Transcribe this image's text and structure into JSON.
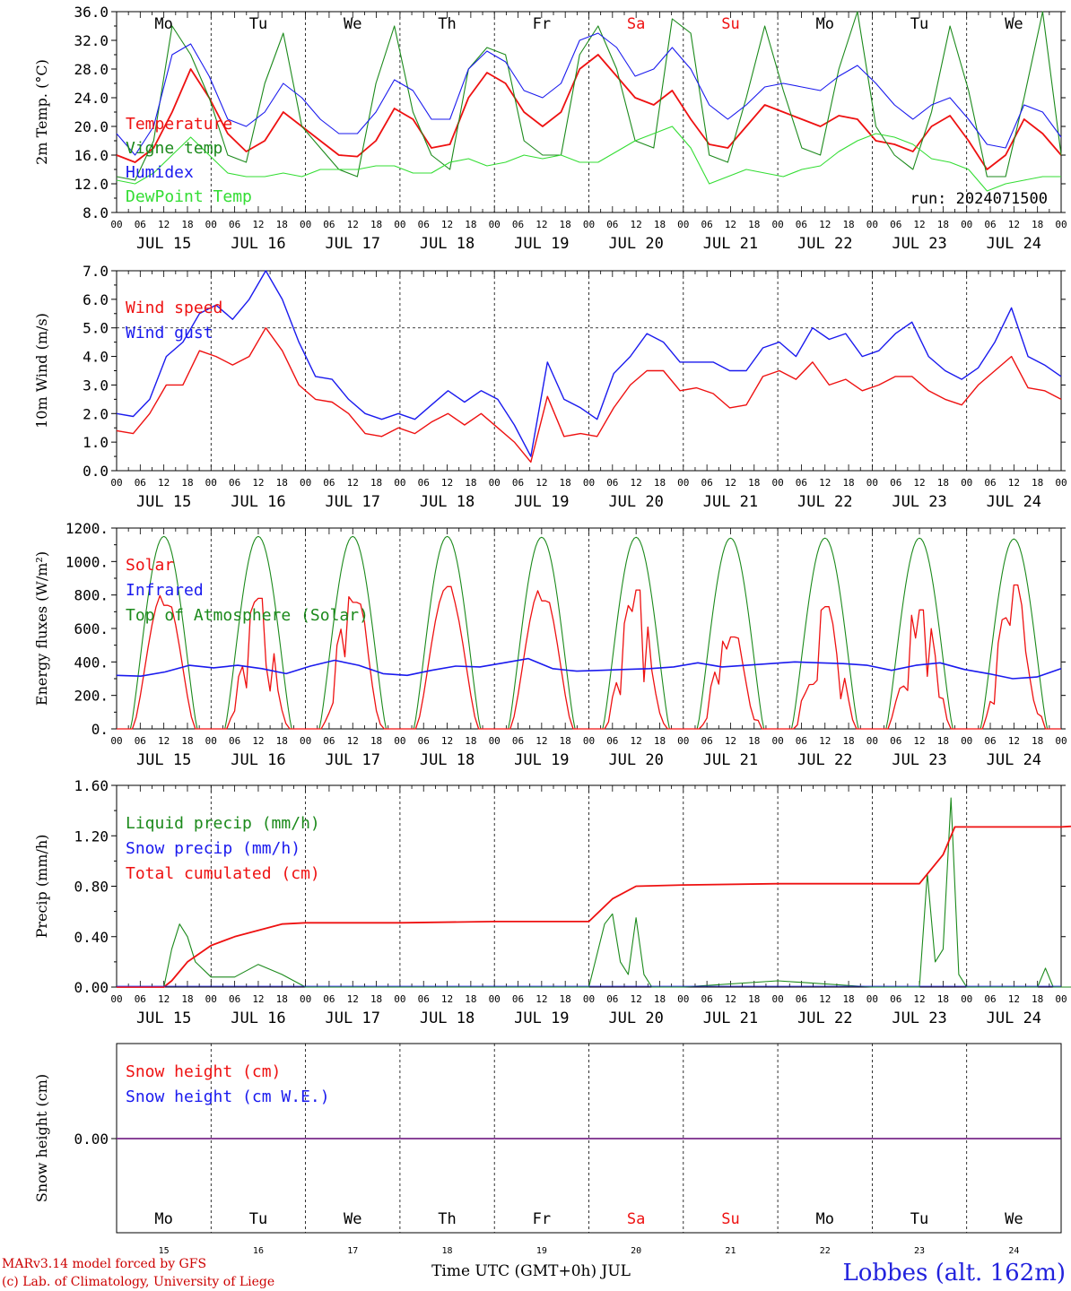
{
  "days": [
    "JUL 15",
    "JUL 16",
    "JUL 17",
    "JUL 18",
    "JUL 19",
    "JUL 20",
    "JUL 21",
    "JUL 22",
    "JUL 23",
    "JUL 24"
  ],
  "day_numbers": [
    "15",
    "16",
    "17",
    "18",
    "19",
    "20",
    "21",
    "22",
    "23",
    "24"
  ],
  "weekdays": [
    "Mo",
    "Tu",
    "We",
    "Th",
    "Fr",
    "Sa",
    "Su",
    "Mo",
    "Tu",
    "We"
  ],
  "weekend_flags": [
    false,
    false,
    false,
    false,
    false,
    true,
    true,
    false,
    false,
    false
  ],
  "hour_ticks": [
    "00",
    "06",
    "12",
    "18"
  ],
  "colors": {
    "red": "#ee1111",
    "green": "#1c8a1c",
    "blue": "#1a1aee",
    "light_green": "#33dd33",
    "purple": "#7a2a8a",
    "weekend": "#ee1111"
  },
  "footer": {
    "credit_line1": "MARv3.14 model forced by GFS",
    "credit_line2": "(c) Lab. of Climatology, University of Liege",
    "x_title": "Time UTC (GMT+0h) JUL",
    "station": "Lobbes (alt. 162m)"
  },
  "chart_data": [
    {
      "type": "line",
      "ylabel": "2m Temp. (°C)",
      "ylim": [
        8,
        36
      ],
      "yticks": [
        "8.0",
        "12.0",
        "16.0",
        "20.0",
        "24.0",
        "28.0",
        "32.0",
        "36.0"
      ],
      "run_label": "run: 2024071500",
      "legend": [
        "Temperature",
        "Vigne temp",
        "Humidex",
        "DewPoint Temp"
      ],
      "series": [
        {
          "name": "Temperature",
          "color": "red",
          "values": [
            16,
            15,
            17,
            22,
            28,
            24,
            19,
            16.5,
            18,
            22,
            20,
            18,
            16,
            15.8,
            18,
            22.5,
            21,
            17,
            17.5,
            24,
            27.5,
            26,
            22,
            20,
            22,
            28,
            30,
            27,
            24,
            23,
            25,
            21,
            17.5,
            17,
            20,
            23,
            22,
            21,
            20,
            21.5,
            21,
            18,
            17.5,
            16.5,
            20,
            21.5,
            18,
            14,
            16,
            21,
            19,
            16
          ]
        },
        {
          "name": "Vigne temp",
          "color": "green",
          "values": [
            13,
            12.5,
            18,
            34,
            30,
            24,
            16,
            15,
            26,
            33,
            20,
            17,
            14,
            13,
            26,
            34,
            22,
            16,
            14,
            28,
            31,
            30,
            18,
            16,
            16,
            30,
            34,
            28,
            18,
            17,
            35,
            33,
            16,
            15,
            24,
            34,
            25,
            17,
            16,
            28,
            36,
            20,
            16,
            14,
            22,
            34,
            25,
            13,
            13,
            24,
            36,
            16
          ]
        },
        {
          "name": "Humidex",
          "color": "blue",
          "values": [
            19,
            16,
            20,
            30,
            31.5,
            27,
            21,
            20,
            22,
            26,
            24,
            21,
            19,
            19,
            22,
            26.5,
            25,
            21,
            21,
            28,
            30.5,
            29,
            25,
            24,
            26,
            32,
            33,
            31,
            27,
            28,
            31,
            28,
            23,
            21,
            23,
            25.5,
            26,
            25.5,
            25,
            27,
            28.5,
            26,
            23,
            21,
            23,
            24,
            21,
            17.5,
            17,
            23,
            22,
            18.5
          ]
        },
        {
          "name": "DewPoint Temp",
          "color": "light_green",
          "values": [
            12.5,
            12,
            13.5,
            16,
            18.5,
            16,
            13.5,
            13,
            13,
            13.5,
            13,
            14,
            14,
            14,
            14.5,
            14.5,
            13.5,
            13.5,
            15,
            15.5,
            14.5,
            15,
            16,
            15.5,
            16,
            15,
            15,
            16.5,
            18,
            19,
            20,
            17,
            12,
            13,
            14,
            13.5,
            13,
            14,
            14.5,
            16.5,
            18,
            19,
            18.5,
            17.5,
            15.5,
            15,
            14,
            11,
            12,
            12.5,
            13,
            13
          ]
        }
      ]
    },
    {
      "type": "line",
      "ylabel": "10m Wind (m/s)",
      "ylim": [
        0,
        7
      ],
      "yticks": [
        "0.0",
        "1.0",
        "2.0",
        "3.0",
        "4.0",
        "5.0",
        "6.0",
        "7.0"
      ],
      "legend": [
        "Wind speed",
        "Wind gust"
      ],
      "series": [
        {
          "name": "Wind speed",
          "color": "red",
          "values": [
            1.4,
            1.3,
            2,
            3,
            3,
            4.2,
            4,
            3.7,
            4,
            5,
            4.2,
            3,
            2.5,
            2.4,
            2,
            1.3,
            1.2,
            1.5,
            1.3,
            1.7,
            2,
            1.6,
            2,
            1.5,
            1,
            0.3,
            2.6,
            1.2,
            1.3,
            1.2,
            2.2,
            3,
            3.5,
            3.5,
            2.8,
            2.9,
            2.7,
            2.2,
            2.3,
            3.3,
            3.5,
            3.2,
            3.8,
            3,
            3.2,
            2.8,
            3,
            3.3,
            3.3,
            2.8,
            2.5,
            2.3,
            3,
            3.5,
            4,
            2.9,
            2.8,
            2.5
          ]
        },
        {
          "name": "Wind gust",
          "color": "blue",
          "values": [
            2,
            1.9,
            2.5,
            4,
            4.5,
            5.5,
            5.8,
            5.3,
            6,
            7,
            6,
            4.5,
            3.3,
            3.2,
            2.5,
            2,
            1.8,
            2,
            1.8,
            2.3,
            2.8,
            2.4,
            2.8,
            2.5,
            1.6,
            0.5,
            3.8,
            2.5,
            2.2,
            1.8,
            3.4,
            4,
            4.8,
            4.5,
            3.8,
            3.8,
            3.8,
            3.5,
            3.5,
            4.3,
            4.5,
            4,
            5,
            4.6,
            4.8,
            4,
            4.2,
            4.8,
            5.2,
            4,
            3.5,
            3.2,
            3.6,
            4.5,
            5.7,
            4,
            3.7,
            3.3
          ]
        }
      ]
    },
    {
      "type": "line",
      "ylabel": "Energy fluxes (W/m²)",
      "ylim": [
        0,
        1200
      ],
      "yticks": [
        "0.",
        "200.",
        "400.",
        "600.",
        "800.",
        "1000.",
        "1200."
      ],
      "legend": [
        "Solar",
        "Infrared",
        "Top of Atmosphere (Solar)"
      ],
      "series": [
        {
          "name": "Solar peak",
          "color": "red",
          "values": [
            820,
            780,
            840,
            850,
            850,
            830,
            610,
            730,
            790,
            860
          ]
        },
        {
          "name": "Infrared",
          "color": "blue",
          "values": [
            320,
            315,
            340,
            380,
            365,
            380,
            360,
            330,
            375,
            410,
            380,
            330,
            320,
            350,
            375,
            370,
            395,
            420,
            360,
            345,
            350,
            355,
            360,
            370,
            395,
            370,
            380,
            390,
            400,
            395,
            390,
            380,
            350,
            380,
            395,
            355,
            330,
            300,
            310,
            360
          ]
        },
        {
          "name": "Top of Atmosphere (Solar) peak",
          "color": "green",
          "values": [
            1150,
            1150,
            1150,
            1150,
            1145,
            1145,
            1140,
            1140,
            1140,
            1135
          ]
        }
      ]
    },
    {
      "type": "line",
      "ylabel": "Precip (mm/h)",
      "ylim": [
        0,
        1.6
      ],
      "yticks": [
        "0.00",
        "0.40",
        "0.80",
        "1.20",
        "1.60"
      ],
      "legend": [
        "Liquid precip (mm/h)",
        "Snow precip (mm/h)",
        "Total cumulated (cm)"
      ],
      "series": [
        {
          "name": "Total cumulated (cm)",
          "color": "red",
          "x_hours": [
            0,
            12,
            14,
            18,
            24,
            30,
            36,
            42,
            48,
            60,
            72,
            96,
            120,
            126,
            132,
            144,
            168,
            192,
            204,
            210,
            213,
            240,
            250,
            260,
            264,
            288,
            300
          ],
          "values": [
            0,
            0,
            0.05,
            0.2,
            0.33,
            0.4,
            0.45,
            0.5,
            0.51,
            0.51,
            0.51,
            0.52,
            0.52,
            0.7,
            0.8,
            0.81,
            0.82,
            0.82,
            0.82,
            1.05,
            1.27,
            1.27,
            1.29,
            1.3,
            1.3,
            1.3,
            1.4
          ]
        },
        {
          "name": "Liquid precip (mm/h)",
          "color": "green",
          "x_hours": [
            0,
            12,
            14,
            16,
            18,
            20,
            24,
            30,
            36,
            42,
            48,
            60,
            96,
            120,
            124,
            126,
            128,
            130,
            132,
            134,
            136,
            144,
            168,
            192,
            204,
            206,
            208,
            210,
            212,
            214,
            216,
            226,
            234,
            236,
            238,
            240,
            282,
            284,
            288
          ],
          "values": [
            0,
            0,
            0.3,
            0.5,
            0.4,
            0.2,
            0.08,
            0.08,
            0.18,
            0.1,
            0,
            0,
            0,
            0,
            0.5,
            0.58,
            0.2,
            0.1,
            0.55,
            0.1,
            0,
            0,
            0.05,
            0,
            0,
            0.9,
            0.2,
            0.3,
            1.5,
            0.1,
            0,
            0,
            0,
            0.15,
            0,
            0,
            0,
            0.18,
            0.1
          ]
        },
        {
          "name": "Snow precip (mm/h)",
          "color": "blue",
          "values": [
            0
          ]
        }
      ]
    },
    {
      "type": "line",
      "ylabel": "Snow height (cm)",
      "ytick": "0.00",
      "legend": [
        "Snow height (cm)",
        "Snow height (cm W.E.)"
      ],
      "series": [
        {
          "name": "Snow height (cm)",
          "color": "red",
          "values": [
            0,
            0
          ]
        },
        {
          "name": "Snow height (cm W.E.)",
          "color": "blue",
          "values": [
            0,
            0
          ]
        }
      ]
    }
  ]
}
